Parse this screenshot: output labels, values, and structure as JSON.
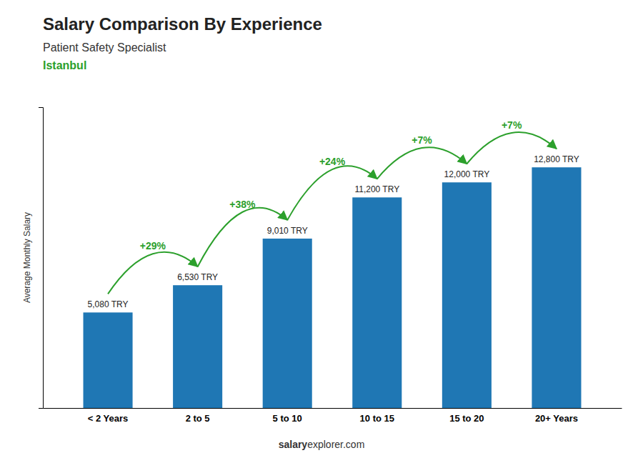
{
  "chart_data": {
    "type": "bar",
    "title": "Salary Comparison By Experience",
    "subtitle": "Patient Safety Specialist",
    "city": "Istanbul",
    "ylabel": "Average Monthly Salary",
    "categories": [
      "< 2 Years",
      "2 to 5",
      "5 to 10",
      "10 to 15",
      "15 to 20",
      "20+ Years"
    ],
    "values": [
      5080,
      6530,
      9010,
      11200,
      12000,
      12800
    ],
    "value_labels": [
      "5,080 TRY",
      "6,530 TRY",
      "9,010 TRY",
      "11,200 TRY",
      "12,000 TRY",
      "12,800 TRY"
    ],
    "data_labels": true,
    "annotations": [
      "+29%",
      "+38%",
      "+24%",
      "+7%",
      "+7%"
    ],
    "footer": [
      "salary",
      "explorer.com"
    ],
    "ylim": [
      0,
      16000
    ],
    "tick_labels": "x",
    "grid": false
  }
}
